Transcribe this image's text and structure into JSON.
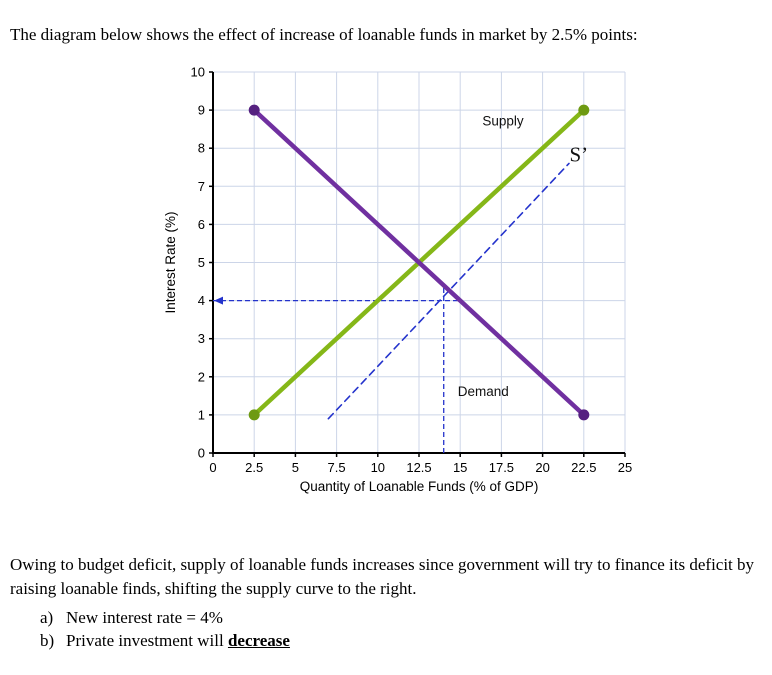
{
  "intro": "The diagram below shows the effect of increase of loanable funds in market by 2.5% points:",
  "chart_data": {
    "type": "line",
    "title": "",
    "xlabel": "Quantity of Loanable Funds (% of GDP)",
    "ylabel": "Interest Rate (%)",
    "xlim": [
      0,
      25
    ],
    "ylim": [
      0,
      10
    ],
    "xticks": [
      "0",
      "2.5",
      "5",
      "7.5",
      "10",
      "12.5",
      "15",
      "17.5",
      "20",
      "22.5",
      "25"
    ],
    "yticks": [
      "0",
      "1",
      "2",
      "3",
      "4",
      "5",
      "6",
      "7",
      "8",
      "9",
      "10"
    ],
    "grid": true,
    "grid_color": "#ccd5e8",
    "axis_color": "#000000",
    "series": [
      {
        "name": "S-prime-shifted-supply",
        "label": "S’",
        "style": "dashed",
        "color": "#2433cc",
        "width": 1.6,
        "points": [
          [
            7,
            0.9
          ],
          [
            21.6,
            7.6
          ]
        ]
      },
      {
        "name": "Supply",
        "style": "solid",
        "color": "#85b718",
        "marker_color": "#6e9a12",
        "width": 4.5,
        "points": [
          [
            2.5,
            1
          ],
          [
            22.5,
            9
          ]
        ]
      },
      {
        "name": "Demand",
        "style": "solid",
        "color": "#7030a0",
        "marker_color": "#552180",
        "width": 4.5,
        "points": [
          [
            2.5,
            9
          ],
          [
            22.5,
            1
          ]
        ]
      }
    ],
    "guides": {
      "color": "#2433cc",
      "interest_rate": 4,
      "quantity": 14,
      "h_extent": 15,
      "v_extent": 4.45
    },
    "labels": [
      {
        "text": "Supply",
        "x": 17.6,
        "y": 8.6,
        "font": "sans",
        "size": 13.5
      },
      {
        "text": "S’",
        "x": 22.2,
        "y": 7.65,
        "font": "serif",
        "size": 21
      },
      {
        "text": "Demand",
        "x": 16.4,
        "y": 1.5,
        "font": "sans",
        "size": 13.5
      }
    ]
  },
  "paragraph": "Owing to budget deficit, supply of loanable funds increases since government will try to finance its deficit by raising loanable finds, shifting the supply curve to the right.",
  "answers": {
    "a_label": "a)",
    "a_text": "New interest rate = 4%",
    "b_label": "b)",
    "b_text": "Private investment will ",
    "b_emphasis": "decrease"
  }
}
